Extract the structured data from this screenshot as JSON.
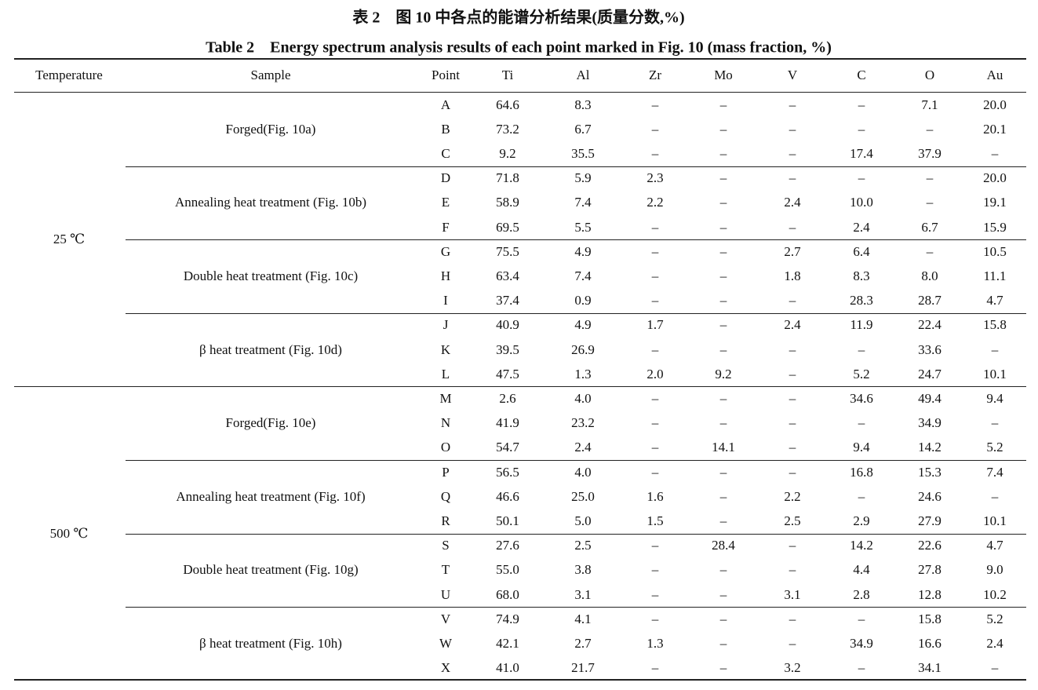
{
  "title_cn": "表 2　图 10 中各点的能谱分析结果(质量分数,%)",
  "title_en": "Table 2　Energy spectrum analysis results of each point marked in Fig. 10 (mass fraction, %)",
  "table": {
    "header": [
      "Temperature",
      "Sample",
      "Point",
      "Ti",
      "Al",
      "Zr",
      "Mo",
      "V",
      "C",
      "O",
      "Au"
    ],
    "groups": [
      {
        "temperature": "25 ℃",
        "samples": [
          {
            "sample": "Forged(Fig. 10a)",
            "rows": [
              [
                "A",
                "64.6",
                "8.3",
                "–",
                "–",
                "–",
                "–",
                "7.1",
                "20.0"
              ],
              [
                "B",
                "73.2",
                "6.7",
                "–",
                "–",
                "–",
                "–",
                "–",
                "20.1"
              ],
              [
                "C",
                "9.2",
                "35.5",
                "–",
                "–",
                "–",
                "17.4",
                "37.9",
                "–"
              ]
            ]
          },
          {
            "sample": "Annealing heat treatment (Fig. 10b)",
            "rows": [
              [
                "D",
                "71.8",
                "5.9",
                "2.3",
                "–",
                "–",
                "–",
                "–",
                "20.0"
              ],
              [
                "E",
                "58.9",
                "7.4",
                "2.2",
                "–",
                "2.4",
                "10.0",
                "–",
                "19.1"
              ],
              [
                "F",
                "69.5",
                "5.5",
                "–",
                "–",
                "–",
                "2.4",
                "6.7",
                "15.9"
              ]
            ]
          },
          {
            "sample": "Double heat treatment (Fig. 10c)",
            "rows": [
              [
                "G",
                "75.5",
                "4.9",
                "–",
                "–",
                "2.7",
                "6.4",
                "–",
                "10.5"
              ],
              [
                "H",
                "63.4",
                "7.4",
                "–",
                "–",
                "1.8",
                "8.3",
                "8.0",
                "11.1"
              ],
              [
                "I",
                "37.4",
                "0.9",
                "–",
                "–",
                "–",
                "28.3",
                "28.7",
                "4.7"
              ]
            ]
          },
          {
            "sample": "β heat treatment (Fig. 10d)",
            "rows": [
              [
                "J",
                "40.9",
                "4.9",
                "1.7",
                "–",
                "2.4",
                "11.9",
                "22.4",
                "15.8"
              ],
              [
                "K",
                "39.5",
                "26.9",
                "–",
                "–",
                "–",
                "–",
                "33.6",
                "–"
              ],
              [
                "L",
                "47.5",
                "1.3",
                "2.0",
                "9.2",
                "–",
                "5.2",
                "24.7",
                "10.1"
              ]
            ]
          }
        ]
      },
      {
        "temperature": "500 ℃",
        "samples": [
          {
            "sample": "Forged(Fig. 10e)",
            "rows": [
              [
                "M",
                "2.6",
                "4.0",
                "–",
                "–",
                "–",
                "34.6",
                "49.4",
                "9.4"
              ],
              [
                "N",
                "41.9",
                "23.2",
                "–",
                "–",
                "–",
                "–",
                "34.9",
                "–"
              ],
              [
                "O",
                "54.7",
                "2.4",
                "–",
                "14.1",
                "–",
                "9.4",
                "14.2",
                "5.2"
              ]
            ]
          },
          {
            "sample": "Annealing heat treatment (Fig. 10f)",
            "rows": [
              [
                "P",
                "56.5",
                "4.0",
                "–",
                "–",
                "–",
                "16.8",
                "15.3",
                "7.4"
              ],
              [
                "Q",
                "46.6",
                "25.0",
                "1.6",
                "–",
                "2.2",
                "–",
                "24.6",
                "–"
              ],
              [
                "R",
                "50.1",
                "5.0",
                "1.5",
                "–",
                "2.5",
                "2.9",
                "27.9",
                "10.1"
              ]
            ]
          },
          {
            "sample": "Double heat treatment (Fig. 10g)",
            "rows": [
              [
                "S",
                "27.6",
                "2.5",
                "–",
                "28.4",
                "–",
                "14.2",
                "22.6",
                "4.7"
              ],
              [
                "T",
                "55.0",
                "3.8",
                "–",
                "–",
                "–",
                "4.4",
                "27.8",
                "9.0"
              ],
              [
                "U",
                "68.0",
                "3.1",
                "–",
                "–",
                "3.1",
                "2.8",
                "12.8",
                "10.2"
              ]
            ]
          },
          {
            "sample": "β heat treatment (Fig. 10h)",
            "rows": [
              [
                "V",
                "74.9",
                "4.1",
                "–",
                "–",
                "–",
                "–",
                "15.8",
                "5.2"
              ],
              [
                "W",
                "42.1",
                "2.7",
                "1.3",
                "–",
                "–",
                "34.9",
                "16.6",
                "2.4"
              ],
              [
                "X",
                "41.0",
                "21.7",
                "–",
                "–",
                "3.2",
                "–",
                "34.1",
                "–"
              ]
            ]
          }
        ]
      }
    ]
  }
}
